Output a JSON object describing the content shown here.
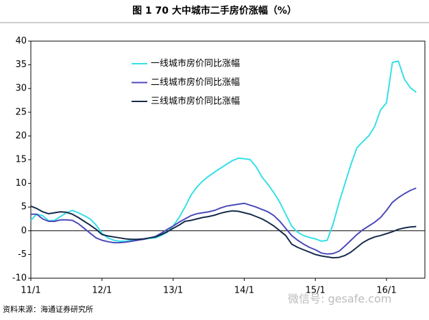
{
  "chart_data": {
    "type": "line",
    "title": "图 1   70 大中城市二手房价涨幅（%）",
    "source": "资料来源：海通证券研究所",
    "watermark": "微信号: gesafe.com",
    "categories": [
      "11/1",
      null,
      null,
      null,
      null,
      null,
      null,
      null,
      null,
      null,
      null,
      null,
      "12/1",
      null,
      null,
      null,
      null,
      null,
      null,
      null,
      null,
      null,
      null,
      null,
      "13/1",
      null,
      null,
      null,
      null,
      null,
      null,
      null,
      null,
      null,
      null,
      null,
      "14/1",
      null,
      null,
      null,
      null,
      null,
      null,
      null,
      null,
      null,
      null,
      null,
      "15/1",
      null,
      null,
      null,
      null,
      null,
      null,
      null,
      null,
      null,
      null,
      null,
      "16/1",
      null,
      null,
      null,
      null,
      null
    ],
    "series": [
      {
        "name": "一线城市房价同比涨幅",
        "color": "#33e0e8",
        "values": [
          2.2,
          3.5,
          3.2,
          2.1,
          2.2,
          3,
          3.8,
          4.3,
          3.8,
          3.2,
          2.5,
          1.2,
          -0.5,
          -1.5,
          -2,
          -2.2,
          -2.2,
          -2,
          -1.9,
          -1.8,
          -1.6,
          -1.5,
          -1,
          -0.3,
          1,
          2.8,
          5,
          7.5,
          9.2,
          10.5,
          11.5,
          12.4,
          13.2,
          14,
          14.8,
          15.3,
          15.2,
          15,
          13.5,
          11.3,
          9.8,
          8,
          6,
          3.5,
          1,
          -0.3,
          -1,
          -1.4,
          -1.7,
          -2.2,
          -2,
          1.5,
          6,
          10,
          14,
          17.5,
          18.8,
          20,
          22,
          25.5,
          27,
          35.5,
          35.8,
          32,
          30.2,
          29.2
        ]
      },
      {
        "name": "二线城市房价同比涨幅",
        "color": "#4a48b8",
        "values": [
          3.5,
          3.5,
          2.5,
          2,
          2,
          2.3,
          2.3,
          2.2,
          1.5,
          0.5,
          -0.5,
          -1.5,
          -2,
          -2.3,
          -2.5,
          -2.5,
          -2.4,
          -2.2,
          -2,
          -1.8,
          -1.5,
          -1.2,
          -0.5,
          0.3,
          1,
          1.8,
          2.5,
          3.2,
          3.6,
          3.8,
          4,
          4.3,
          4.8,
          5.2,
          5.4,
          5.6,
          5.8,
          5.4,
          5,
          4.5,
          4,
          3.2,
          2,
          0.5,
          -1,
          -2,
          -2.8,
          -3.5,
          -4,
          -4.7,
          -4.9,
          -4.8,
          -4.3,
          -3.2,
          -2,
          -0.8,
          0.2,
          1,
          1.8,
          2.8,
          4.3,
          6,
          7,
          7.8,
          8.5,
          9
        ]
      },
      {
        "name": "三线城市房价同比涨幅",
        "color": "#142a4a",
        "values": [
          5.2,
          4.7,
          4,
          3.6,
          3.8,
          4,
          3.9,
          3.5,
          2.8,
          2,
          1.2,
          0.3,
          -0.8,
          -1.1,
          -1.3,
          -1.5,
          -1.7,
          -1.8,
          -1.8,
          -1.7,
          -1.5,
          -1.3,
          -0.8,
          -0.2,
          0.5,
          1.2,
          2,
          2.2,
          2.5,
          2.8,
          3,
          3.3,
          3.7,
          4,
          4.2,
          4.1,
          3.8,
          3.5,
          3,
          2.5,
          1.8,
          1,
          0,
          -1,
          -2.8,
          -3.5,
          -4,
          -4.5,
          -5,
          -5.3,
          -5.5,
          -5.7,
          -5.6,
          -5.2,
          -4.5,
          -3.5,
          -2.5,
          -1.8,
          -1.3,
          -1,
          -0.6,
          -0.2,
          0.3,
          0.6,
          0.8,
          0.9
        ]
      }
    ],
    "ylim": [
      -10,
      40
    ],
    "yticks": [
      -10,
      -5,
      0,
      5,
      10,
      15,
      20,
      25,
      30,
      35,
      40
    ],
    "grid": false
  }
}
